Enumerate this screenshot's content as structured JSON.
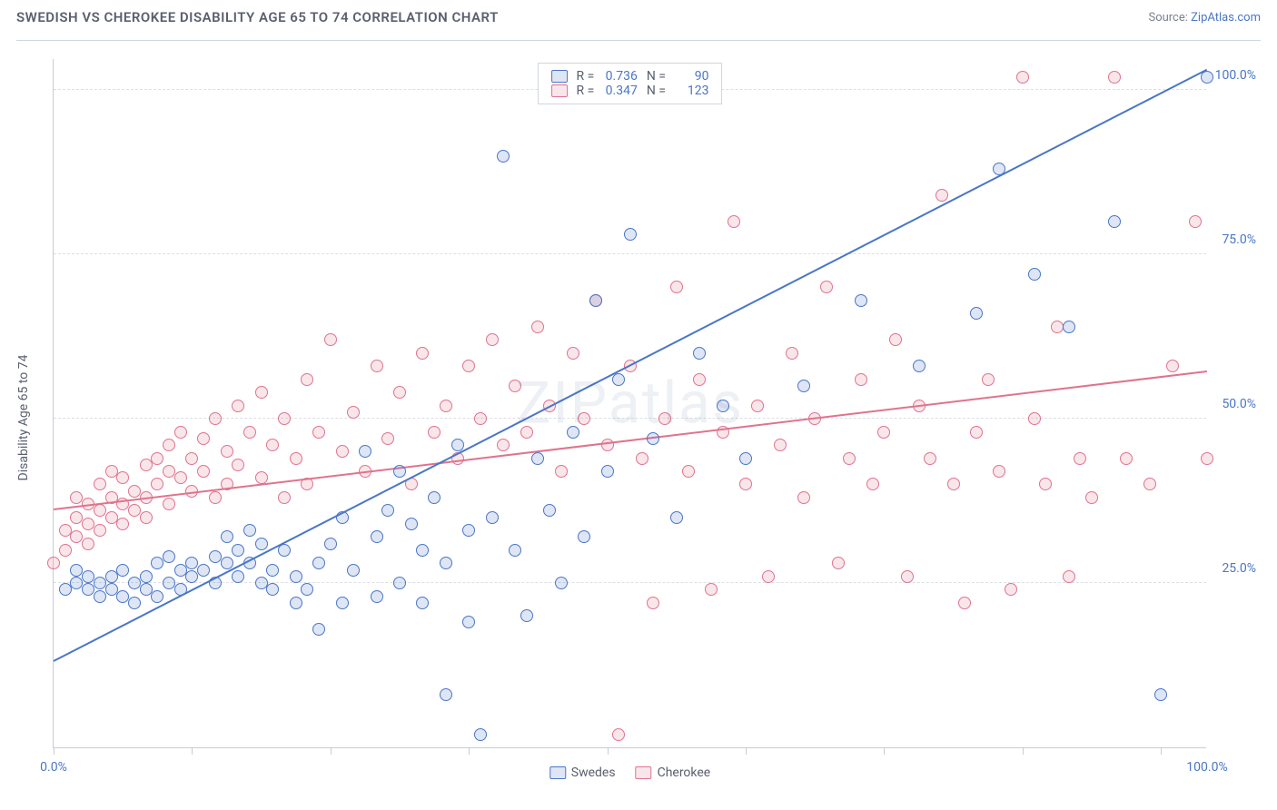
{
  "title": "SWEDISH VS CHEROKEE DISABILITY AGE 65 TO 74 CORRELATION CHART",
  "source_prefix": "Source: ",
  "source_name": "ZipAtlas.com",
  "watermark": "ZIPatlas",
  "chart": {
    "type": "scatter",
    "ylabel": "Disability Age 65 to 74",
    "xlim": [
      0,
      100
    ],
    "ylim": [
      0,
      105
    ],
    "yticks": [
      25,
      50,
      75,
      100
    ],
    "ytick_labels": [
      "25.0%",
      "50.0%",
      "75.0%",
      "100.0%"
    ],
    "xtick_positions": [
      0,
      12,
      24,
      36,
      48,
      60,
      72,
      84,
      96
    ],
    "xtick_labels": {
      "0": "0.0%",
      "100": "100.0%"
    },
    "background_color": "#ffffff",
    "grid_color": "#dcdfe6",
    "axis_color": "#c6cdd8",
    "marker_radius": 7,
    "marker_stroke_width": 1.5,
    "marker_fill_opacity": 0.15,
    "line_width": 2,
    "series": [
      {
        "name": "Swedes",
        "color": "#4a76c7",
        "fill": "rgba(74,118,199,0.18)",
        "R": "0.736",
        "N": "90",
        "trend": {
          "x1": 0,
          "y1": 13,
          "x2": 100,
          "y2": 103
        },
        "points": [
          [
            1,
            24
          ],
          [
            2,
            25
          ],
          [
            2,
            27
          ],
          [
            3,
            24
          ],
          [
            3,
            26
          ],
          [
            4,
            25
          ],
          [
            4,
            23
          ],
          [
            5,
            24
          ],
          [
            5,
            26
          ],
          [
            6,
            27
          ],
          [
            6,
            23
          ],
          [
            7,
            25
          ],
          [
            7,
            22
          ],
          [
            8,
            26
          ],
          [
            8,
            24
          ],
          [
            9,
            28
          ],
          [
            9,
            23
          ],
          [
            10,
            25
          ],
          [
            10,
            29
          ],
          [
            11,
            27
          ],
          [
            11,
            24
          ],
          [
            12,
            26
          ],
          [
            12,
            28
          ],
          [
            13,
            27
          ],
          [
            14,
            29
          ],
          [
            14,
            25
          ],
          [
            15,
            28
          ],
          [
            15,
            32
          ],
          [
            16,
            30
          ],
          [
            16,
            26
          ],
          [
            17,
            33
          ],
          [
            17,
            28
          ],
          [
            18,
            31
          ],
          [
            18,
            25
          ],
          [
            19,
            27
          ],
          [
            19,
            24
          ],
          [
            20,
            30
          ],
          [
            21,
            26
          ],
          [
            21,
            22
          ],
          [
            22,
            24
          ],
          [
            23,
            28
          ],
          [
            23,
            18
          ],
          [
            24,
            31
          ],
          [
            25,
            35
          ],
          [
            25,
            22
          ],
          [
            26,
            27
          ],
          [
            27,
            45
          ],
          [
            28,
            32
          ],
          [
            28,
            23
          ],
          [
            29,
            36
          ],
          [
            30,
            25
          ],
          [
            30,
            42
          ],
          [
            31,
            34
          ],
          [
            32,
            22
          ],
          [
            32,
            30
          ],
          [
            33,
            38
          ],
          [
            34,
            8
          ],
          [
            34,
            28
          ],
          [
            35,
            46
          ],
          [
            36,
            33
          ],
          [
            36,
            19
          ],
          [
            37,
            2
          ],
          [
            38,
            35
          ],
          [
            39,
            90
          ],
          [
            40,
            30
          ],
          [
            41,
            20
          ],
          [
            42,
            44
          ],
          [
            43,
            36
          ],
          [
            44,
            25
          ],
          [
            45,
            48
          ],
          [
            46,
            32
          ],
          [
            47,
            68
          ],
          [
            48,
            42
          ],
          [
            49,
            56
          ],
          [
            50,
            78
          ],
          [
            52,
            47
          ],
          [
            54,
            35
          ],
          [
            56,
            60
          ],
          [
            58,
            52
          ],
          [
            60,
            44
          ],
          [
            65,
            55
          ],
          [
            70,
            68
          ],
          [
            75,
            58
          ],
          [
            80,
            66
          ],
          [
            82,
            88
          ],
          [
            85,
            72
          ],
          [
            88,
            64
          ],
          [
            92,
            80
          ],
          [
            96,
            8
          ],
          [
            100,
            102
          ]
        ]
      },
      {
        "name": "Cherokee",
        "color": "#e0738c",
        "fill": "rgba(224,115,140,0.18)",
        "R": "0.347",
        "N": "123",
        "trend": {
          "x1": 0,
          "y1": 36,
          "x2": 100,
          "y2": 57
        },
        "points": [
          [
            0,
            28
          ],
          [
            1,
            30
          ],
          [
            1,
            33
          ],
          [
            2,
            32
          ],
          [
            2,
            35
          ],
          [
            2,
            38
          ],
          [
            3,
            34
          ],
          [
            3,
            31
          ],
          [
            3,
            37
          ],
          [
            4,
            36
          ],
          [
            4,
            33
          ],
          [
            4,
            40
          ],
          [
            5,
            38
          ],
          [
            5,
            35
          ],
          [
            5,
            42
          ],
          [
            6,
            37
          ],
          [
            6,
            34
          ],
          [
            6,
            41
          ],
          [
            7,
            39
          ],
          [
            7,
            36
          ],
          [
            8,
            38
          ],
          [
            8,
            43
          ],
          [
            8,
            35
          ],
          [
            9,
            40
          ],
          [
            9,
            44
          ],
          [
            10,
            42
          ],
          [
            10,
            37
          ],
          [
            10,
            46
          ],
          [
            11,
            41
          ],
          [
            11,
            48
          ],
          [
            12,
            39
          ],
          [
            12,
            44
          ],
          [
            13,
            47
          ],
          [
            13,
            42
          ],
          [
            14,
            38
          ],
          [
            14,
            50
          ],
          [
            15,
            45
          ],
          [
            15,
            40
          ],
          [
            16,
            52
          ],
          [
            16,
            43
          ],
          [
            17,
            48
          ],
          [
            18,
            41
          ],
          [
            18,
            54
          ],
          [
            19,
            46
          ],
          [
            20,
            50
          ],
          [
            20,
            38
          ],
          [
            21,
            44
          ],
          [
            22,
            56
          ],
          [
            22,
            40
          ],
          [
            23,
            48
          ],
          [
            24,
            62
          ],
          [
            25,
            45
          ],
          [
            26,
            51
          ],
          [
            27,
            42
          ],
          [
            28,
            58
          ],
          [
            29,
            47
          ],
          [
            30,
            54
          ],
          [
            31,
            40
          ],
          [
            32,
            60
          ],
          [
            33,
            48
          ],
          [
            34,
            52
          ],
          [
            35,
            44
          ],
          [
            36,
            58
          ],
          [
            37,
            50
          ],
          [
            38,
            62
          ],
          [
            39,
            46
          ],
          [
            40,
            55
          ],
          [
            41,
            48
          ],
          [
            42,
            64
          ],
          [
            43,
            52
          ],
          [
            44,
            42
          ],
          [
            45,
            60
          ],
          [
            46,
            50
          ],
          [
            47,
            68
          ],
          [
            48,
            46
          ],
          [
            49,
            2
          ],
          [
            50,
            58
          ],
          [
            51,
            44
          ],
          [
            52,
            22
          ],
          [
            53,
            50
          ],
          [
            54,
            70
          ],
          [
            55,
            42
          ],
          [
            56,
            56
          ],
          [
            57,
            24
          ],
          [
            58,
            48
          ],
          [
            59,
            80
          ],
          [
            60,
            40
          ],
          [
            61,
            52
          ],
          [
            62,
            26
          ],
          [
            63,
            46
          ],
          [
            64,
            60
          ],
          [
            65,
            38
          ],
          [
            66,
            50
          ],
          [
            67,
            70
          ],
          [
            68,
            28
          ],
          [
            69,
            44
          ],
          [
            70,
            56
          ],
          [
            71,
            40
          ],
          [
            72,
            48
          ],
          [
            73,
            62
          ],
          [
            74,
            26
          ],
          [
            75,
            52
          ],
          [
            76,
            44
          ],
          [
            77,
            84
          ],
          [
            78,
            40
          ],
          [
            79,
            22
          ],
          [
            80,
            48
          ],
          [
            81,
            56
          ],
          [
            82,
            42
          ],
          [
            83,
            24
          ],
          [
            84,
            102
          ],
          [
            85,
            50
          ],
          [
            86,
            40
          ],
          [
            87,
            64
          ],
          [
            88,
            26
          ],
          [
            89,
            44
          ],
          [
            90,
            38
          ],
          [
            92,
            102
          ],
          [
            93,
            44
          ],
          [
            95,
            40
          ],
          [
            97,
            58
          ],
          [
            99,
            80
          ],
          [
            100,
            44
          ]
        ]
      }
    ],
    "legend_bottom": [
      "Swedes",
      "Cherokee"
    ]
  }
}
